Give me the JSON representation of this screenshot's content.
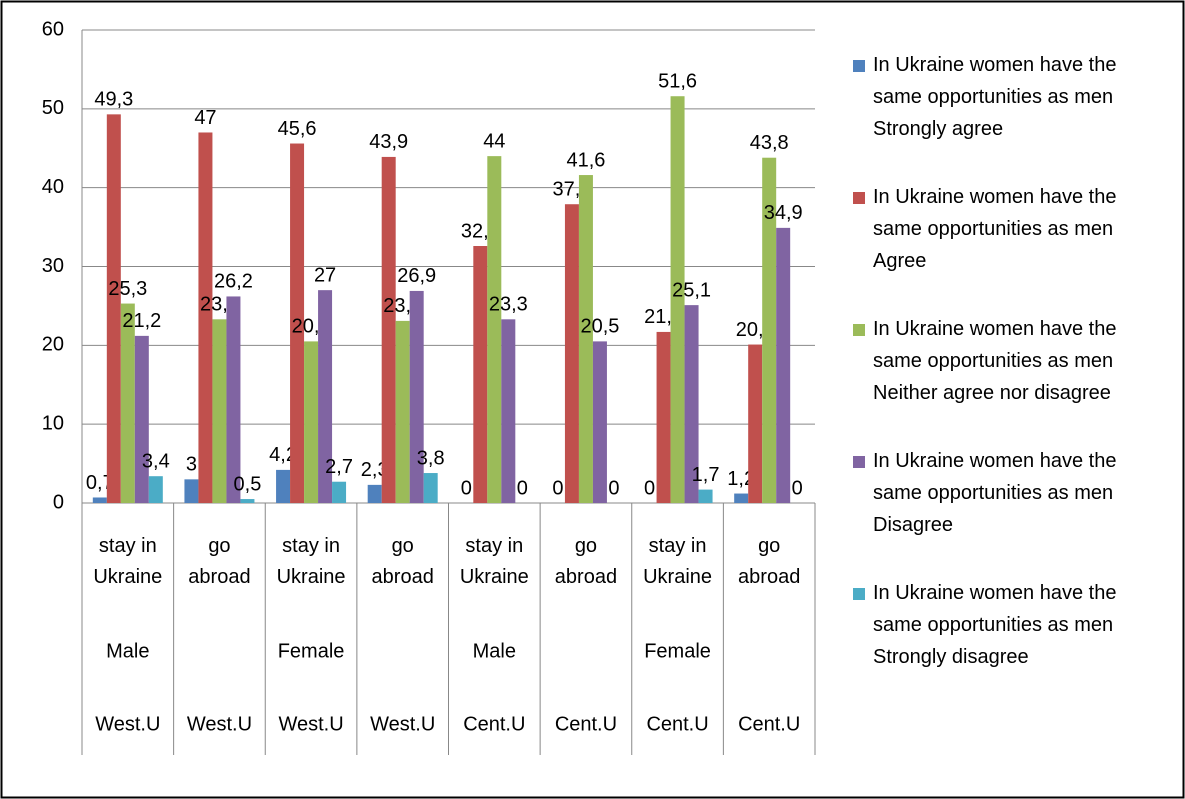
{
  "chart_data": {
    "type": "bar",
    "categories": [
      "stay in Ukraine",
      "go abroad",
      "stay in Ukraine",
      "go abroad",
      "stay in Ukraine",
      "go abroad",
      "stay in Ukraine",
      "go abroad"
    ],
    "gender": [
      "Male",
      null,
      "Female",
      null,
      "Male",
      null,
      "Female",
      null
    ],
    "region": [
      "West.U",
      "West.U",
      "West.U",
      "West.U",
      "Cent.U",
      "Cent.U",
      "Cent.U",
      "Cent.U"
    ],
    "series": [
      {
        "name": "In Ukraine women have the same opportunities as men Strongly agree",
        "color": "#4f81bd",
        "values": [
          0.7,
          3,
          4.2,
          2.3,
          0,
          0,
          0,
          1.2
        ],
        "value_labels": [
          "0,7",
          "3",
          "4,2",
          "2,3",
          "0",
          "0",
          "0",
          "1,2"
        ]
      },
      {
        "name": "In Ukraine women have the same opportunities as men Agree",
        "color": "#c0504d",
        "values": [
          49.3,
          47,
          45.6,
          43.9,
          32.6,
          37.9,
          21.7,
          20.1
        ],
        "value_labels": [
          "49,3",
          "47",
          "45,6",
          "43,9",
          "32,6",
          "37,9",
          "21,7",
          "20,1"
        ]
      },
      {
        "name": "In Ukraine women have the same opportunities as men Neither agree nor disagree",
        "color": "#9bbb59",
        "values": [
          25.3,
          23.3,
          20.5,
          23.1,
          44,
          41.6,
          51.6,
          43.8
        ],
        "value_labels": [
          "25,3",
          "23,3",
          "20,5",
          "23,1",
          "44",
          "41,6",
          "51,6",
          "43,8"
        ]
      },
      {
        "name": "In Ukraine women have the same opportunities as men Disagree",
        "color": "#8064a2",
        "values": [
          21.2,
          26.2,
          27,
          26.9,
          23.3,
          20.5,
          25.1,
          34.9
        ],
        "value_labels": [
          "21,2",
          "26,2",
          "27",
          "26,9",
          "23,3",
          "20,5",
          "25,1",
          "34,9"
        ]
      },
      {
        "name": "In Ukraine women have the same opportunities as men Strongly disagree",
        "color": "#4bacc6",
        "values": [
          3.4,
          0.5,
          2.7,
          3.8,
          0,
          0,
          1.7,
          0
        ],
        "value_labels": [
          "3,4",
          "0,5",
          "2,7",
          "3,8",
          "0",
          "0",
          "1,7",
          "0"
        ]
      }
    ],
    "ylim": [
      0,
      60
    ],
    "yticks": [
      0,
      10,
      20,
      30,
      40,
      50,
      60
    ],
    "grid": true,
    "legend": "right"
  }
}
